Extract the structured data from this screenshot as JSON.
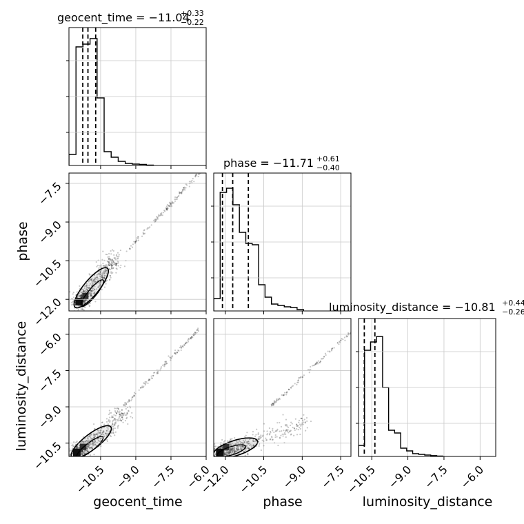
{
  "chart_data": {
    "type": "corner",
    "parameters": [
      "geocent_time",
      "phase",
      "luminosity_distance"
    ],
    "titles": [
      {
        "parameter": "geocent_time",
        "label": "geocent_time = −11.04",
        "plus": "+0.33",
        "minus": "−0.22"
      },
      {
        "parameter": "phase",
        "label": "phase = −11.71",
        "plus": "+0.61",
        "minus": "−0.40"
      },
      {
        "parameter": "luminosity_distance",
        "label": "luminosity_distance = −10.81",
        "plus": "+0.44",
        "minus": "−0.26"
      }
    ],
    "axis_labels": {
      "x": [
        "geocent_time",
        "phase",
        "luminosity_distance"
      ],
      "y": [
        "phase",
        "luminosity_distance"
      ]
    },
    "ranges": {
      "geocent_time": [
        -11.85,
        -6.0
      ],
      "phase": [
        -12.45,
        -7.1
      ],
      "luminosity_distance": [
        -11.05,
        -5.35
      ]
    },
    "ticks": {
      "geocent_time": [
        "−10.5",
        "−9.0",
        "−7.5",
        "−6.0"
      ],
      "phase": [
        "−12.0",
        "−10.5",
        "−9.0",
        "−7.5"
      ],
      "phase_y": [
        "−7.5",
        "−9.0",
        "−10.5",
        "−12.0"
      ],
      "luminosity_distance": [
        "−10.5",
        "−9.0",
        "−7.5",
        "−6.0"
      ],
      "luminosity_distance_y": [
        "−6.0",
        "−7.5",
        "−9.0",
        "−10.5"
      ]
    },
    "tick_values": {
      "geocent_time": [
        -10.5,
        -9.0,
        -7.5,
        -6.0
      ],
      "phase": [
        -12.0,
        -10.5,
        -9.0,
        -7.5
      ],
      "luminosity_distance": [
        -10.5,
        -9.0,
        -7.5,
        -6.0
      ]
    },
    "quantiles": {
      "geocent_time": [
        -11.26,
        -11.04,
        -10.71
      ],
      "phase": [
        -12.11,
        -11.71,
        -11.1
      ],
      "luminosity_distance": [
        -11.07,
        -10.81,
        -10.37
      ]
    },
    "histograms": {
      "geocent_time": {
        "edges": [
          -11.85,
          -11.55,
          -11.25,
          -10.95,
          -10.65,
          -10.35,
          -10.05,
          -9.75,
          -9.45,
          -9.15,
          -8.85,
          -8.55,
          -8.25
        ],
        "counts": [
          0.08,
          0.86,
          0.88,
          0.92,
          0.49,
          0.1,
          0.06,
          0.03,
          0.015,
          0.01,
          0.008,
          0.003
        ]
      },
      "phase": {
        "edges": [
          -12.45,
          -12.2,
          -11.95,
          -11.7,
          -11.45,
          -11.2,
          -10.95,
          -10.7,
          -10.45,
          -10.2,
          -9.95,
          -9.7,
          -9.45,
          -9.2,
          -8.95
        ],
        "counts": [
          0.09,
          0.86,
          0.89,
          0.77,
          0.57,
          0.49,
          0.48,
          0.19,
          0.1,
          0.05,
          0.04,
          0.03,
          0.025,
          0.01
        ]
      },
      "luminosity_distance": {
        "edges": [
          -11.05,
          -10.8,
          -10.55,
          -10.3,
          -10.05,
          -9.8,
          -9.55,
          -9.3,
          -9.05,
          -8.8,
          -8.55,
          -8.3,
          -8.05,
          -7.8,
          -7.55
        ],
        "counts": [
          0.08,
          0.77,
          0.83,
          0.87,
          0.5,
          0.19,
          0.17,
          0.06,
          0.04,
          0.02,
          0.015,
          0.01,
          0.006,
          0.003
        ]
      }
    },
    "scatter_trends": {
      "geocent_time_vs_phase": [
        [
          -11.4,
          -12.1
        ],
        [
          -10.4,
          -11.0
        ],
        [
          -9.8,
          -10.3
        ]
      ],
      "geocent_time_vs_luminosity_distance": [
        [
          -11.5,
          -10.9
        ],
        [
          -10.3,
          -10.0
        ],
        [
          -9.4,
          -9.1
        ]
      ],
      "phase_vs_luminosity_distance": [
        [
          -12.2,
          -10.9
        ],
        [
          -11.0,
          -10.5
        ],
        [
          -8.8,
          -9.6
        ]
      ]
    }
  }
}
